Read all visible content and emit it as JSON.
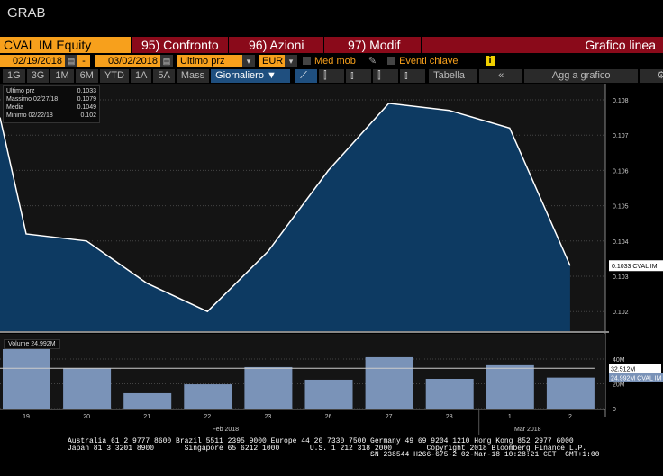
{
  "window_title": "GRAB",
  "header": {
    "security": "CVAL IM Equity",
    "compare": "95) Confronto",
    "actions": "96) Azioni",
    "edit": "97) Modif",
    "chart_type": "Grafico linea"
  },
  "controls": {
    "start_date": "02/19/2018",
    "dash": "-",
    "end_date": "03/02/2018",
    "field": "Ultimo prz",
    "currency": "EUR",
    "moving_avg": "Med mob",
    "key_events": "Eventi chiave",
    "info": "i"
  },
  "periods": [
    "1G",
    "3G",
    "1M",
    "6M",
    "YTD",
    "1A",
    "5A",
    "Mass"
  ],
  "frequency": "Giornaliero ▼",
  "table_label": "Tabella",
  "collapse": "«",
  "add_to_chart": "Agg a grafico",
  "legend": [
    {
      "label": "Ultimo prz",
      "value": "0.1033"
    },
    {
      "label": "Massimo 02/27/18",
      "value": "0.1079"
    },
    {
      "label": "Media",
      "value": "0.1049"
    },
    {
      "label": "Minimo 02/22/18",
      "value": "0.102"
    }
  ],
  "volume_legend": "Volume 24.992M",
  "colors": {
    "orange": "#f7a01c",
    "red": "#8a0a1a",
    "area": "#0d3a62",
    "volume": "#7a93b8"
  },
  "chart_data": [
    {
      "type": "area",
      "categories": [
        "19",
        "20",
        "21",
        "22",
        "23",
        "26",
        "27",
        "28",
        "1",
        "2"
      ],
      "values": [
        0.1042,
        0.104,
        0.1028,
        0.102,
        0.1037,
        0.106,
        0.1079,
        0.1077,
        0.1072,
        0.1033
      ],
      "yticks": [
        "0.108",
        "0.107",
        "0.106",
        "0.105",
        "0.104",
        "0.103",
        "0.102"
      ],
      "ylim": [
        0.1014,
        0.1082
      ],
      "last_label": "0.1033 CVAL IM",
      "month_labels": [
        "Feb 2018",
        "Mar 2018"
      ]
    },
    {
      "type": "bar",
      "categories": [
        "19",
        "20",
        "21",
        "22",
        "23",
        "26",
        "27",
        "28",
        "1",
        "2"
      ],
      "values": [
        48,
        32.7,
        12.4,
        19.6,
        33.5,
        23.3,
        41.5,
        24,
        35,
        24.992
      ],
      "unit": "M",
      "yticks": [
        "40M",
        "20M",
        "0"
      ],
      "ylim": [
        0,
        55
      ],
      "moving_avg": 32.512,
      "ma_label": "32.512M",
      "last_label": "24.992M CVAL IM"
    }
  ],
  "footer": "Australia 61 2 9777 8600 Brazil 5511 2395 9000 Europe 44 20 7330 7500 Germany 49 69 9204 1210 Hong Kong 852 2977 6000\nJapan 81 3 3201 8900       Singapore 65 6212 1000       U.S. 1 212 318 2000        Copyright 2018 Bloomberg Finance L.P.\n                                                                      SN 238544 H266-675-2 02-Mar-18 10:28:21 CET  GMT+1:00"
}
